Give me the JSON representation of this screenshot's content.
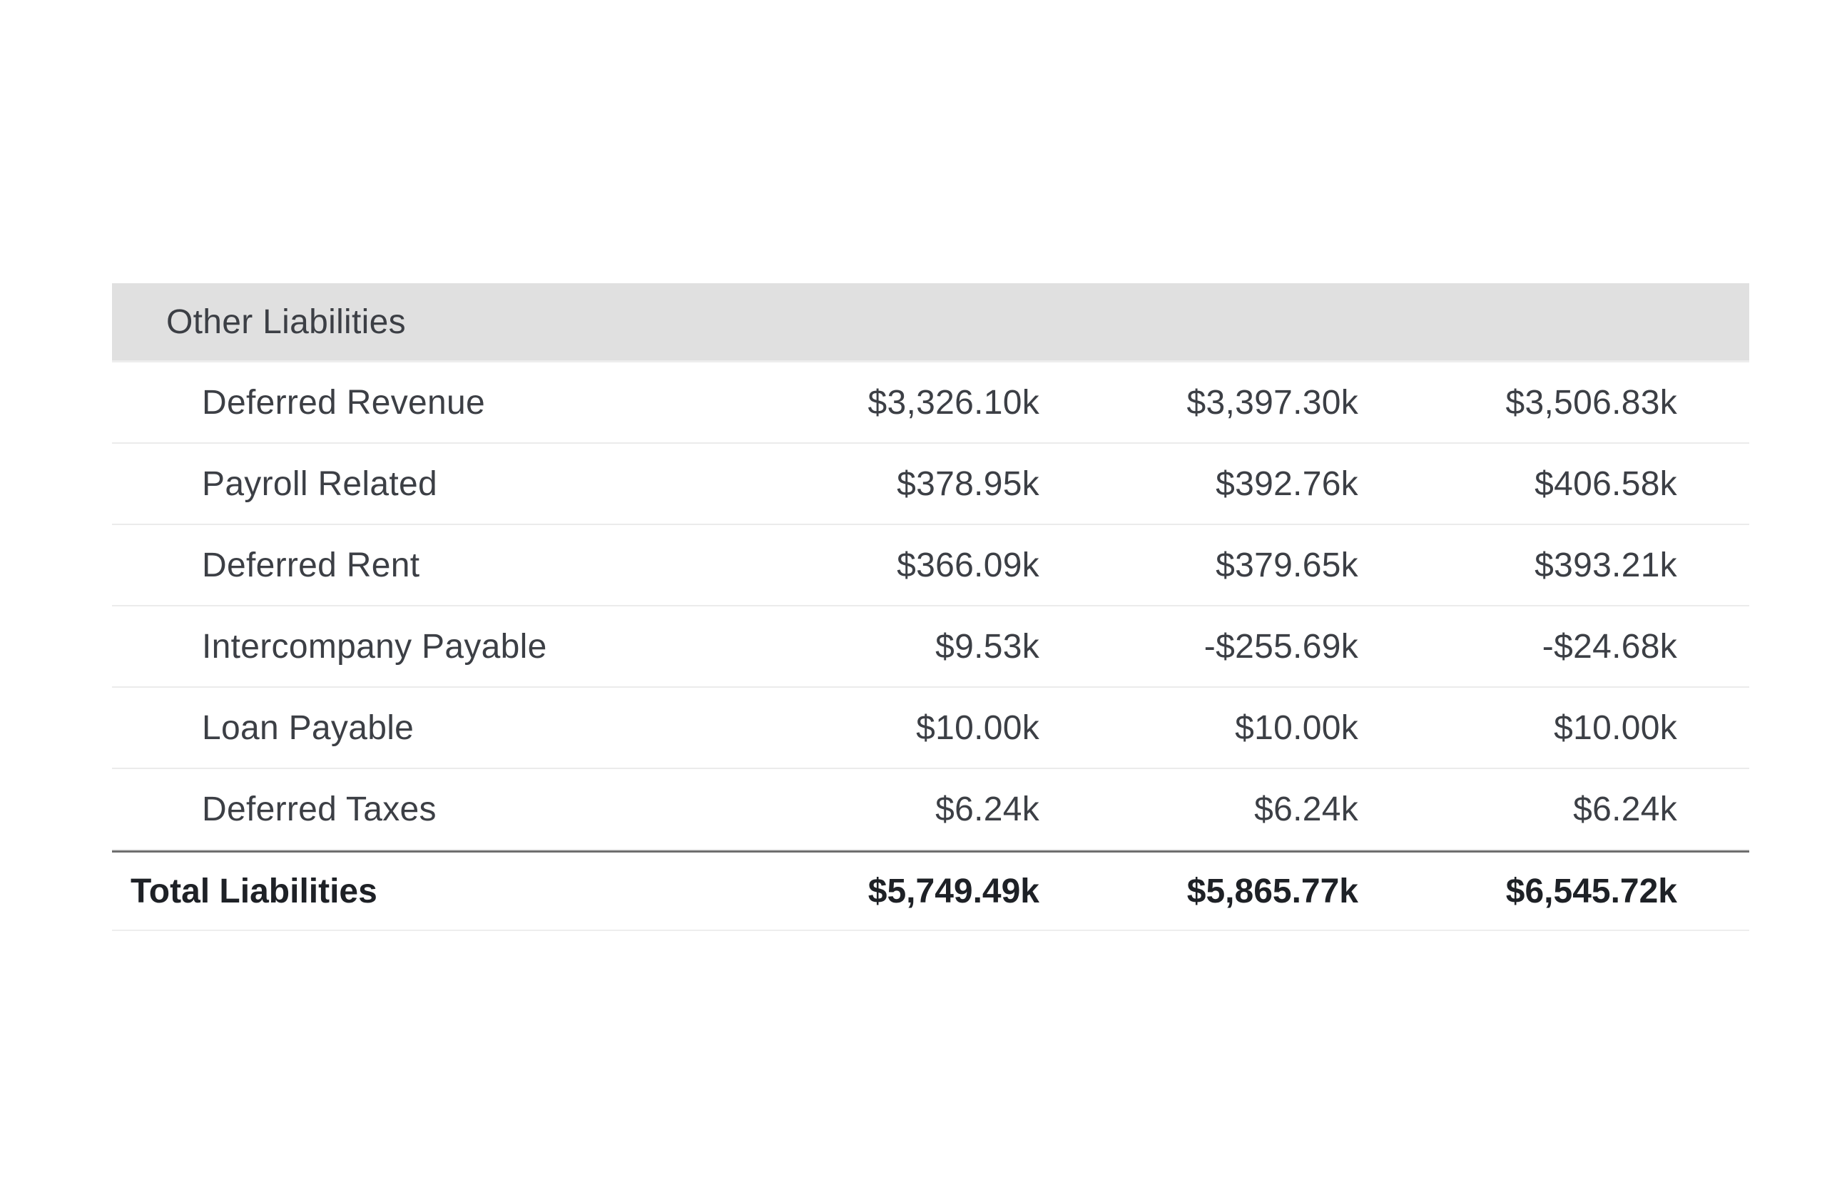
{
  "section": {
    "title": "Other Liabilities"
  },
  "rows": [
    {
      "label": "Deferred Revenue",
      "values": [
        "$3,326.10k",
        "$3,397.30k",
        "$3,506.83k"
      ]
    },
    {
      "label": "Payroll Related",
      "values": [
        "$378.95k",
        "$392.76k",
        "$406.58k"
      ]
    },
    {
      "label": "Deferred Rent",
      "values": [
        "$366.09k",
        "$379.65k",
        "$393.21k"
      ]
    },
    {
      "label": "Intercompany Payable",
      "values": [
        "$9.53k",
        "-$255.69k",
        "-$24.68k"
      ]
    },
    {
      "label": "Loan Payable",
      "values": [
        "$10.00k",
        "$10.00k",
        "$10.00k"
      ]
    },
    {
      "label": "Deferred Taxes",
      "values": [
        "$6.24k",
        "$6.24k",
        "$6.24k"
      ]
    }
  ],
  "total": {
    "label": "Total Liabilities",
    "values": [
      "$5,749.49k",
      "$5,865.77k",
      "$6,545.72k"
    ]
  },
  "colors": {
    "header_bg": "#e0e0e0",
    "text": "#3c3f45",
    "total_text": "#1e2126",
    "divider": "#ebebeb",
    "total_divider": "#6e6e6e"
  }
}
